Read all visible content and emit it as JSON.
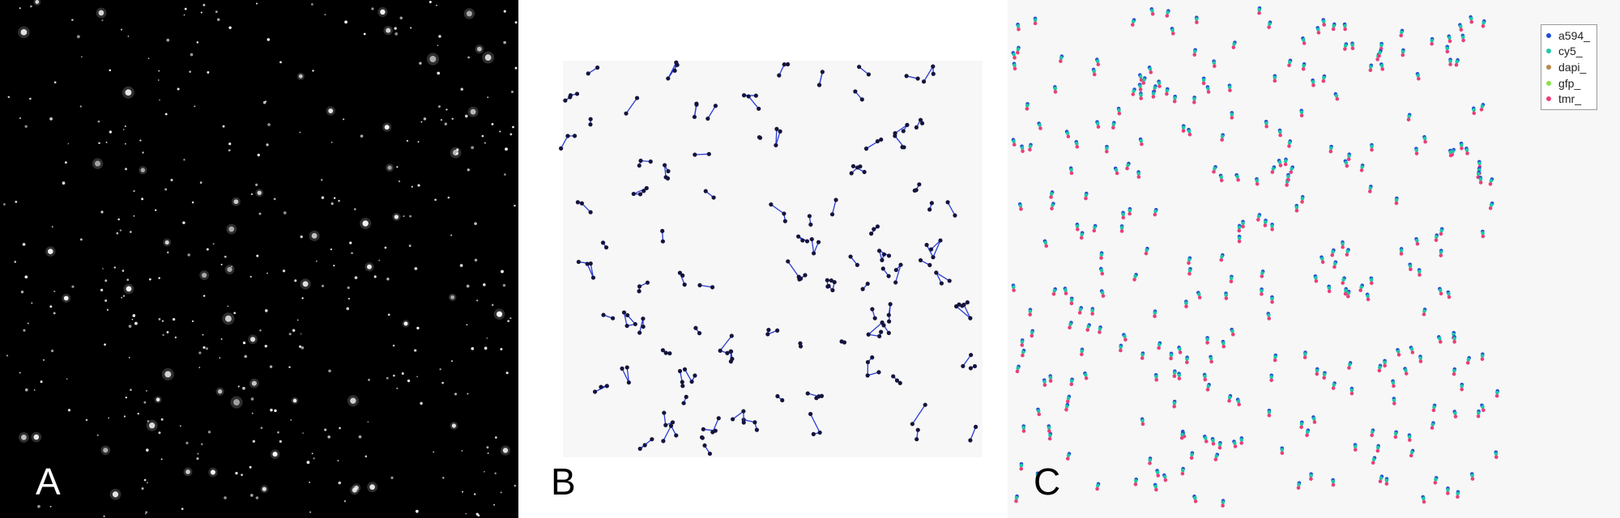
{
  "panels": {
    "a": {
      "label": "A"
    },
    "b": {
      "label": "B"
    },
    "c": {
      "label": "C"
    }
  },
  "legend": {
    "items": [
      {
        "label": "a594_",
        "color": "#1f4fd6"
      },
      {
        "label": "cy5_",
        "color": "#20c8a6"
      },
      {
        "label": "dapi_",
        "color": "#b8884a"
      },
      {
        "label": "gfp_",
        "color": "#8be04a"
      },
      {
        "label": "tmr_",
        "color": "#e8407a"
      }
    ]
  },
  "colors": {
    "panel_a_bg": "#000000",
    "spot": "#ffffff",
    "panel_b_frame": "#f7f7f7",
    "panel_b_dot": "#14143c",
    "panel_b_link": "#2a3cd6",
    "panel_c_bg": "#f7f7f7"
  }
}
